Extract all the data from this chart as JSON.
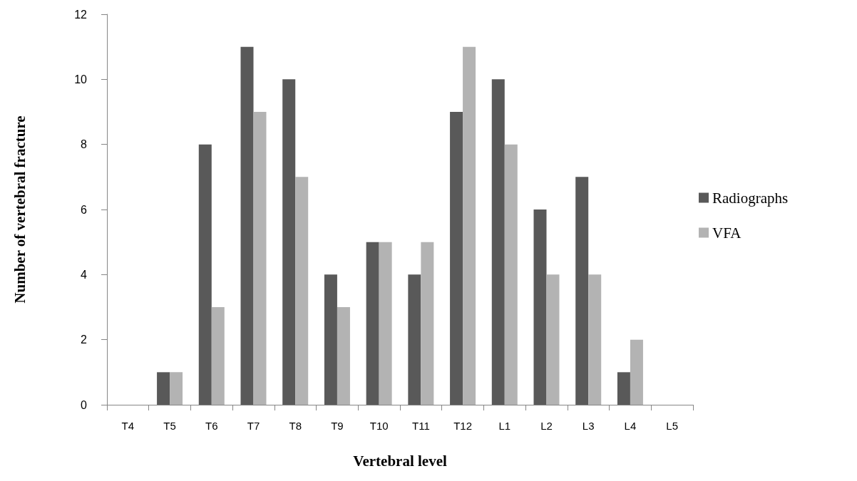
{
  "chart_data": {
    "type": "bar",
    "xlabel": "Vertebral level",
    "ylabel": "Number of vertebral fracture",
    "categories": [
      "T4",
      "T5",
      "T6",
      "T7",
      "T8",
      "T9",
      "T10",
      "T11",
      "T12",
      "L1",
      "L2",
      "L3",
      "L4",
      "L5"
    ],
    "series": [
      {
        "name": "Radiographs",
        "color": "#595959",
        "values": [
          0,
          1,
          8,
          11,
          10,
          4,
          5,
          4,
          9,
          10,
          6,
          7,
          1,
          0
        ]
      },
      {
        "name": "VFA",
        "color": "#b3b3b3",
        "values": [
          0,
          1,
          3,
          9,
          7,
          3,
          5,
          5,
          11,
          8,
          4,
          4,
          2,
          0
        ]
      }
    ],
    "ylim": [
      0,
      12
    ],
    "yticks": [
      0,
      2,
      4,
      6,
      8,
      10,
      12
    ],
    "grid": false,
    "legend": "right"
  }
}
